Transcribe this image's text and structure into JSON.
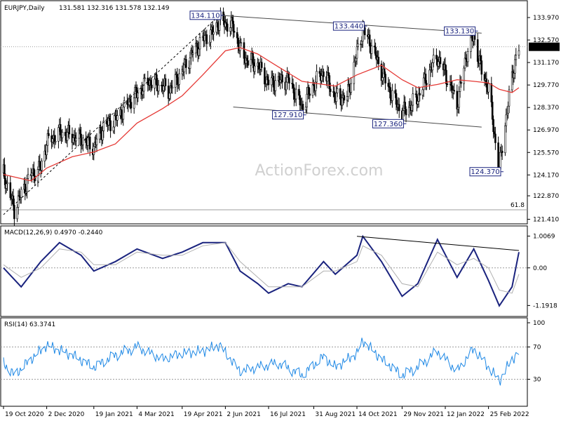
{
  "header": {
    "symbol": "EURJPY,Daily",
    "ohlc": "131.581 132.316 131.578 132.149"
  },
  "watermark": "ActionForex.com",
  "colors": {
    "candle": "#000000",
    "ma": "#e53935",
    "trendline": "#4a4a4a",
    "macd_line": "#1a237e",
    "signal_line": "#b0b0b0",
    "rsi_line": "#1e88e5",
    "annotation_border": "#1a237e",
    "annotation_bg": "#ffffff",
    "price_label_bg": "#000000"
  },
  "chart_data": [
    {
      "type": "candlestick",
      "panel": "price",
      "yaxis_ticks": [
        "133.970",
        "132.570",
        "131.170",
        "129.770",
        "128.370",
        "126.970",
        "125.570",
        "124.170",
        "122.870",
        "121.410"
      ],
      "ylim": [
        121.3,
        134.8
      ],
      "current_price": "132.149",
      "fib_label": "61.8",
      "annotations": [
        "134.110",
        "133.440",
        "133.130",
        "127.910",
        "127.360",
        "124.370"
      ],
      "ma_label": "",
      "price_series": [
        {
          "date": "2020-10-19",
          "close": 124.3
        },
        {
          "date": "2020-10-30",
          "close": 122.0
        },
        {
          "date": "2020-11-06",
          "close": 123.0
        },
        {
          "date": "2020-11-16",
          "close": 124.2
        },
        {
          "date": "2020-11-26",
          "close": 124.6
        },
        {
          "date": "2020-12-02",
          "close": 126.2
        },
        {
          "date": "2020-12-15",
          "close": 126.8
        },
        {
          "date": "2020-12-28",
          "close": 126.6
        },
        {
          "date": "2021-01-06",
          "close": 126.4
        },
        {
          "date": "2021-01-19",
          "close": 125.9
        },
        {
          "date": "2021-01-29",
          "close": 127.2
        },
        {
          "date": "2021-02-10",
          "close": 127.6
        },
        {
          "date": "2021-02-25",
          "close": 128.8
        },
        {
          "date": "2021-03-04",
          "close": 129.2
        },
        {
          "date": "2021-03-15",
          "close": 130.0
        },
        {
          "date": "2021-03-30",
          "close": 129.7
        },
        {
          "date": "2021-04-05",
          "close": 129.4
        },
        {
          "date": "2021-04-19",
          "close": 130.6
        },
        {
          "date": "2021-04-28",
          "close": 131.6
        },
        {
          "date": "2021-05-10",
          "close": 132.6
        },
        {
          "date": "2021-05-20",
          "close": 133.0
        },
        {
          "date": "2021-05-27",
          "close": 133.8
        },
        {
          "date": "2021-06-02",
          "close": 133.6
        },
        {
          "date": "2021-06-10",
          "close": 133.4
        },
        {
          "date": "2021-06-17",
          "close": 132.0
        },
        {
          "date": "2021-06-24",
          "close": 131.3
        },
        {
          "date": "2021-07-05",
          "close": 131.0
        },
        {
          "date": "2021-07-16",
          "close": 129.9
        },
        {
          "date": "2021-07-26",
          "close": 130.0
        },
        {
          "date": "2021-08-05",
          "close": 130.1
        },
        {
          "date": "2021-08-19",
          "close": 128.4
        },
        {
          "date": "2021-08-31",
          "close": 129.8
        },
        {
          "date": "2021-09-10",
          "close": 130.6
        },
        {
          "date": "2021-09-22",
          "close": 129.0
        },
        {
          "date": "2021-10-04",
          "close": 129.0
        },
        {
          "date": "2021-10-14",
          "close": 131.8
        },
        {
          "date": "2021-10-20",
          "close": 133.2
        },
        {
          "date": "2021-10-29",
          "close": 132.2
        },
        {
          "date": "2021-11-08",
          "close": 130.6
        },
        {
          "date": "2021-11-18",
          "close": 129.2
        },
        {
          "date": "2021-11-29",
          "close": 128.0
        },
        {
          "date": "2021-12-06",
          "close": 128.4
        },
        {
          "date": "2021-12-15",
          "close": 129.0
        },
        {
          "date": "2021-12-28",
          "close": 130.8
        },
        {
          "date": "2022-01-04",
          "close": 131.5
        },
        {
          "date": "2022-01-12",
          "close": 130.5
        },
        {
          "date": "2022-01-24",
          "close": 128.6
        },
        {
          "date": "2022-02-03",
          "close": 131.8
        },
        {
          "date": "2022-02-10",
          "close": 132.8
        },
        {
          "date": "2022-02-18",
          "close": 130.6
        },
        {
          "date": "2022-02-25",
          "close": 129.6
        },
        {
          "date": "2022-03-04",
          "close": 126.2
        },
        {
          "date": "2022-03-08",
          "close": 124.5
        },
        {
          "date": "2022-03-14",
          "close": 127.4
        },
        {
          "date": "2022-03-21",
          "close": 130.2
        },
        {
          "date": "2022-03-25",
          "close": 131.6
        },
        {
          "date": "2022-03-28",
          "close": 132.1
        }
      ],
      "ma_series": [
        {
          "date": "2020-10-19",
          "value": 124.2
        },
        {
          "date": "2020-11-16",
          "value": 123.8
        },
        {
          "date": "2020-12-02",
          "value": 124.6
        },
        {
          "date": "2020-12-28",
          "value": 125.3
        },
        {
          "date": "2021-01-19",
          "value": 125.6
        },
        {
          "date": "2021-02-10",
          "value": 126.1
        },
        {
          "date": "2021-03-04",
          "value": 127.4
        },
        {
          "date": "2021-03-30",
          "value": 128.3
        },
        {
          "date": "2021-04-19",
          "value": 129.1
        },
        {
          "date": "2021-05-10",
          "value": 130.4
        },
        {
          "date": "2021-06-02",
          "value": 131.9
        },
        {
          "date": "2021-06-17",
          "value": 132.1
        },
        {
          "date": "2021-07-05",
          "value": 131.7
        },
        {
          "date": "2021-07-26",
          "value": 130.9
        },
        {
          "date": "2021-08-19",
          "value": 130.0
        },
        {
          "date": "2021-09-10",
          "value": 129.8
        },
        {
          "date": "2021-09-22",
          "value": 129.7
        },
        {
          "date": "2021-10-14",
          "value": 130.4
        },
        {
          "date": "2021-11-08",
          "value": 131.0
        },
        {
          "date": "2021-11-29",
          "value": 130.1
        },
        {
          "date": "2021-12-15",
          "value": 129.6
        },
        {
          "date": "2022-01-04",
          "value": 129.8
        },
        {
          "date": "2022-01-24",
          "value": 130.1
        },
        {
          "date": "2022-02-10",
          "value": 130.0
        },
        {
          "date": "2022-02-25",
          "value": 129.9
        },
        {
          "date": "2022-03-08",
          "value": 129.5
        },
        {
          "date": "2022-03-21",
          "value": 129.3
        },
        {
          "date": "2022-03-28",
          "value": 129.6
        }
      ],
      "trendlines": [
        {
          "name": "upper-channel",
          "from": {
            "date": "2021-05-27",
            "value": 134.11
          },
          "to": {
            "date": "2022-02-18",
            "value": 133.0
          },
          "style": "solid"
        },
        {
          "name": "lower-channel",
          "from": {
            "date": "2021-06-10",
            "value": 128.4
          },
          "to": {
            "date": "2022-02-18",
            "value": 127.15
          },
          "style": "solid"
        },
        {
          "name": "rising-support",
          "from": {
            "date": "2020-10-19",
            "value": 121.7
          },
          "to": {
            "date": "2021-05-27",
            "value": 134.11
          },
          "style": "dashed"
        }
      ],
      "horizontal_levels": [
        {
          "name": "current-price-level",
          "value": 132.149,
          "style": "dotted"
        },
        {
          "name": "fib-61.8-level",
          "value": 122.0,
          "style": "solid"
        }
      ],
      "annotation_points": [
        {
          "label": "134.110",
          "date": "2021-05-27",
          "value": 134.11,
          "anchor": "left"
        },
        {
          "label": "133.440",
          "date": "2021-10-20",
          "value": 133.44,
          "anchor": "left"
        },
        {
          "label": "133.130",
          "date": "2022-02-10",
          "value": 133.13,
          "anchor": "left"
        },
        {
          "label": "127.910",
          "date": "2021-08-19",
          "value": 127.91,
          "anchor": "left"
        },
        {
          "label": "127.360",
          "date": "2021-11-29",
          "value": 127.36,
          "anchor": "left"
        },
        {
          "label": "124.370",
          "date": "2022-03-08",
          "value": 124.37,
          "anchor": "left"
        }
      ]
    },
    {
      "type": "line",
      "panel": "macd",
      "title": "MACD(12,26,9) 0.4970 -0.2440",
      "yaxis_ticks": [
        "1.0069",
        "0.00",
        "-1.1918"
      ],
      "ylim": [
        -1.45,
        1.15
      ],
      "x": [
        "2020-10-19",
        "2020-11-06",
        "2020-11-26",
        "2020-12-15",
        "2021-01-06",
        "2021-01-19",
        "2021-02-10",
        "2021-03-04",
        "2021-03-30",
        "2021-04-19",
        "2021-05-10",
        "2021-06-02",
        "2021-06-17",
        "2021-07-05",
        "2021-07-16",
        "2021-08-05",
        "2021-08-19",
        "2021-09-10",
        "2021-09-22",
        "2021-10-14",
        "2021-10-20",
        "2021-11-08",
        "2021-11-29",
        "2021-12-15",
        "2022-01-04",
        "2022-01-24",
        "2022-02-10",
        "2022-02-25",
        "2022-03-08",
        "2022-03-21",
        "2022-03-28"
      ],
      "series": [
        {
          "name": "MACD",
          "values": [
            0.0,
            -0.6,
            0.2,
            0.8,
            0.4,
            -0.1,
            0.2,
            0.6,
            0.3,
            0.5,
            0.8,
            0.8,
            -0.1,
            -0.5,
            -0.8,
            -0.5,
            -0.6,
            0.2,
            -0.2,
            0.4,
            1.0,
            0.2,
            -0.9,
            -0.5,
            0.9,
            -0.3,
            0.6,
            -0.4,
            -1.2,
            -0.6,
            0.5
          ]
        },
        {
          "name": "Signal",
          "values": [
            0.1,
            -0.3,
            0.0,
            0.6,
            0.5,
            0.1,
            0.1,
            0.5,
            0.4,
            0.4,
            0.7,
            0.8,
            0.2,
            -0.3,
            -0.6,
            -0.6,
            -0.6,
            -0.1,
            -0.1,
            0.2,
            0.7,
            0.4,
            -0.5,
            -0.6,
            0.5,
            0.1,
            0.3,
            0.0,
            -0.7,
            -0.8,
            -0.2
          ]
        }
      ],
      "trendline": {
        "from": {
          "date": "2021-10-14",
          "value": 1.0
        },
        "to": {
          "date": "2022-03-28",
          "value": 0.55
        }
      }
    },
    {
      "type": "line",
      "panel": "rsi",
      "title": "RSI(14) 63.3741",
      "yaxis_ticks": [
        "100",
        "70",
        "30",
        "0"
      ],
      "ylim": [
        0,
        100
      ],
      "levels": [
        70,
        30
      ],
      "x": [
        "2020-10-19",
        "2020-10-30",
        "2020-11-16",
        "2020-12-02",
        "2020-12-28",
        "2021-01-19",
        "2021-02-10",
        "2021-03-04",
        "2021-03-30",
        "2021-04-19",
        "2021-05-10",
        "2021-05-27",
        "2021-06-17",
        "2021-07-05",
        "2021-07-26",
        "2021-08-19",
        "2021-09-10",
        "2021-09-22",
        "2021-10-14",
        "2021-10-20",
        "2021-11-08",
        "2021-11-29",
        "2021-12-15",
        "2022-01-04",
        "2022-01-24",
        "2022-02-10",
        "2022-02-25",
        "2022-03-08",
        "2022-03-21",
        "2022-03-28"
      ],
      "series": [
        {
          "name": "RSI",
          "values": [
            50,
            35,
            55,
            72,
            60,
            45,
            60,
            70,
            55,
            62,
            65,
            72,
            40,
            45,
            50,
            35,
            58,
            45,
            62,
            78,
            55,
            35,
            45,
            65,
            40,
            68,
            45,
            28,
            55,
            63
          ]
        }
      ]
    }
  ],
  "x_axis_labels": [
    {
      "label": "19 Oct 2020",
      "date": "2020-10-19"
    },
    {
      "label": "2 Dec 2020",
      "date": "2020-12-02"
    },
    {
      "label": "19 Jan 2021",
      "date": "2021-01-19"
    },
    {
      "label": "4 Mar 2021",
      "date": "2021-03-04"
    },
    {
      "label": "19 Apr 2021",
      "date": "2021-04-19"
    },
    {
      "label": "2 Jun 2021",
      "date": "2021-06-02"
    },
    {
      "label": "16 Jul 2021",
      "date": "2021-07-16"
    },
    {
      "label": "31 Aug 2021",
      "date": "2021-08-31"
    },
    {
      "label": "14 Oct 2021",
      "date": "2021-10-14"
    },
    {
      "label": "29 Nov 2021",
      "date": "2021-11-29"
    },
    {
      "label": "12 Jan 2022",
      "date": "2022-01-12"
    },
    {
      "label": "25 Feb 2022",
      "date": "2022-02-25"
    }
  ]
}
